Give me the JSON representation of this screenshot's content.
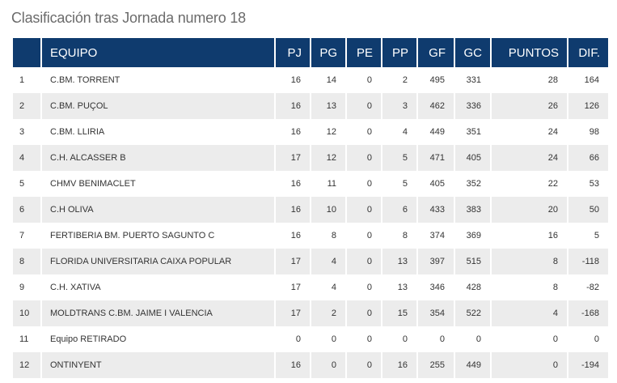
{
  "title": "Clasificación tras Jornada numero 18",
  "colors": {
    "header_bg": "#0f3b6e",
    "row_alt": "#ececec",
    "title": "#6b6b6b"
  },
  "headers": {
    "pos": "",
    "team": "EQUIPO",
    "pj": "PJ",
    "pg": "PG",
    "pe": "PE",
    "pp": "PP",
    "gf": "GF",
    "gc": "GC",
    "puntos": "PUNTOS",
    "dif": "DIF."
  },
  "rows": [
    {
      "pos": "1",
      "team": "C.BM. TORRENT",
      "pj": "16",
      "pg": "14",
      "pe": "0",
      "pp": "2",
      "gf": "495",
      "gc": "331",
      "puntos": "28",
      "dif": "164"
    },
    {
      "pos": "2",
      "team": "C.BM. PUÇOL",
      "pj": "16",
      "pg": "13",
      "pe": "0",
      "pp": "3",
      "gf": "462",
      "gc": "336",
      "puntos": "26",
      "dif": "126"
    },
    {
      "pos": "3",
      "team": "C.BM. LLIRIA",
      "pj": "16",
      "pg": "12",
      "pe": "0",
      "pp": "4",
      "gf": "449",
      "gc": "351",
      "puntos": "24",
      "dif": "98"
    },
    {
      "pos": "4",
      "team": "C.H. ALCASSER B",
      "pj": "17",
      "pg": "12",
      "pe": "0",
      "pp": "5",
      "gf": "471",
      "gc": "405",
      "puntos": "24",
      "dif": "66"
    },
    {
      "pos": "5",
      "team": "CHMV BENIMACLET",
      "pj": "16",
      "pg": "11",
      "pe": "0",
      "pp": "5",
      "gf": "405",
      "gc": "352",
      "puntos": "22",
      "dif": "53"
    },
    {
      "pos": "6",
      "team": "C.H OLIVA",
      "pj": "16",
      "pg": "10",
      "pe": "0",
      "pp": "6",
      "gf": "433",
      "gc": "383",
      "puntos": "20",
      "dif": "50"
    },
    {
      "pos": "7",
      "team": "FERTIBERIA BM. PUERTO SAGUNTO C",
      "pj": "16",
      "pg": "8",
      "pe": "0",
      "pp": "8",
      "gf": "374",
      "gc": "369",
      "puntos": "16",
      "dif": "5"
    },
    {
      "pos": "8",
      "team": "FLORIDA UNIVERSITARIA CAIXA POPULAR",
      "pj": "17",
      "pg": "4",
      "pe": "0",
      "pp": "13",
      "gf": "397",
      "gc": "515",
      "puntos": "8",
      "dif": "-118"
    },
    {
      "pos": "9",
      "team": "C.H. XATIVA",
      "pj": "17",
      "pg": "4",
      "pe": "0",
      "pp": "13",
      "gf": "346",
      "gc": "428",
      "puntos": "8",
      "dif": "-82"
    },
    {
      "pos": "10",
      "team": "MOLDTRANS C.BM. JAIME I VALENCIA",
      "pj": "17",
      "pg": "2",
      "pe": "0",
      "pp": "15",
      "gf": "354",
      "gc": "522",
      "puntos": "4",
      "dif": "-168"
    },
    {
      "pos": "11",
      "team": "Equipo RETIRADO",
      "pj": "0",
      "pg": "0",
      "pe": "0",
      "pp": "0",
      "gf": "0",
      "gc": "0",
      "puntos": "0",
      "dif": "0"
    },
    {
      "pos": "12",
      "team": "ONTINYENT",
      "pj": "16",
      "pg": "0",
      "pe": "0",
      "pp": "16",
      "gf": "255",
      "gc": "449",
      "puntos": "0",
      "dif": "-194"
    }
  ]
}
